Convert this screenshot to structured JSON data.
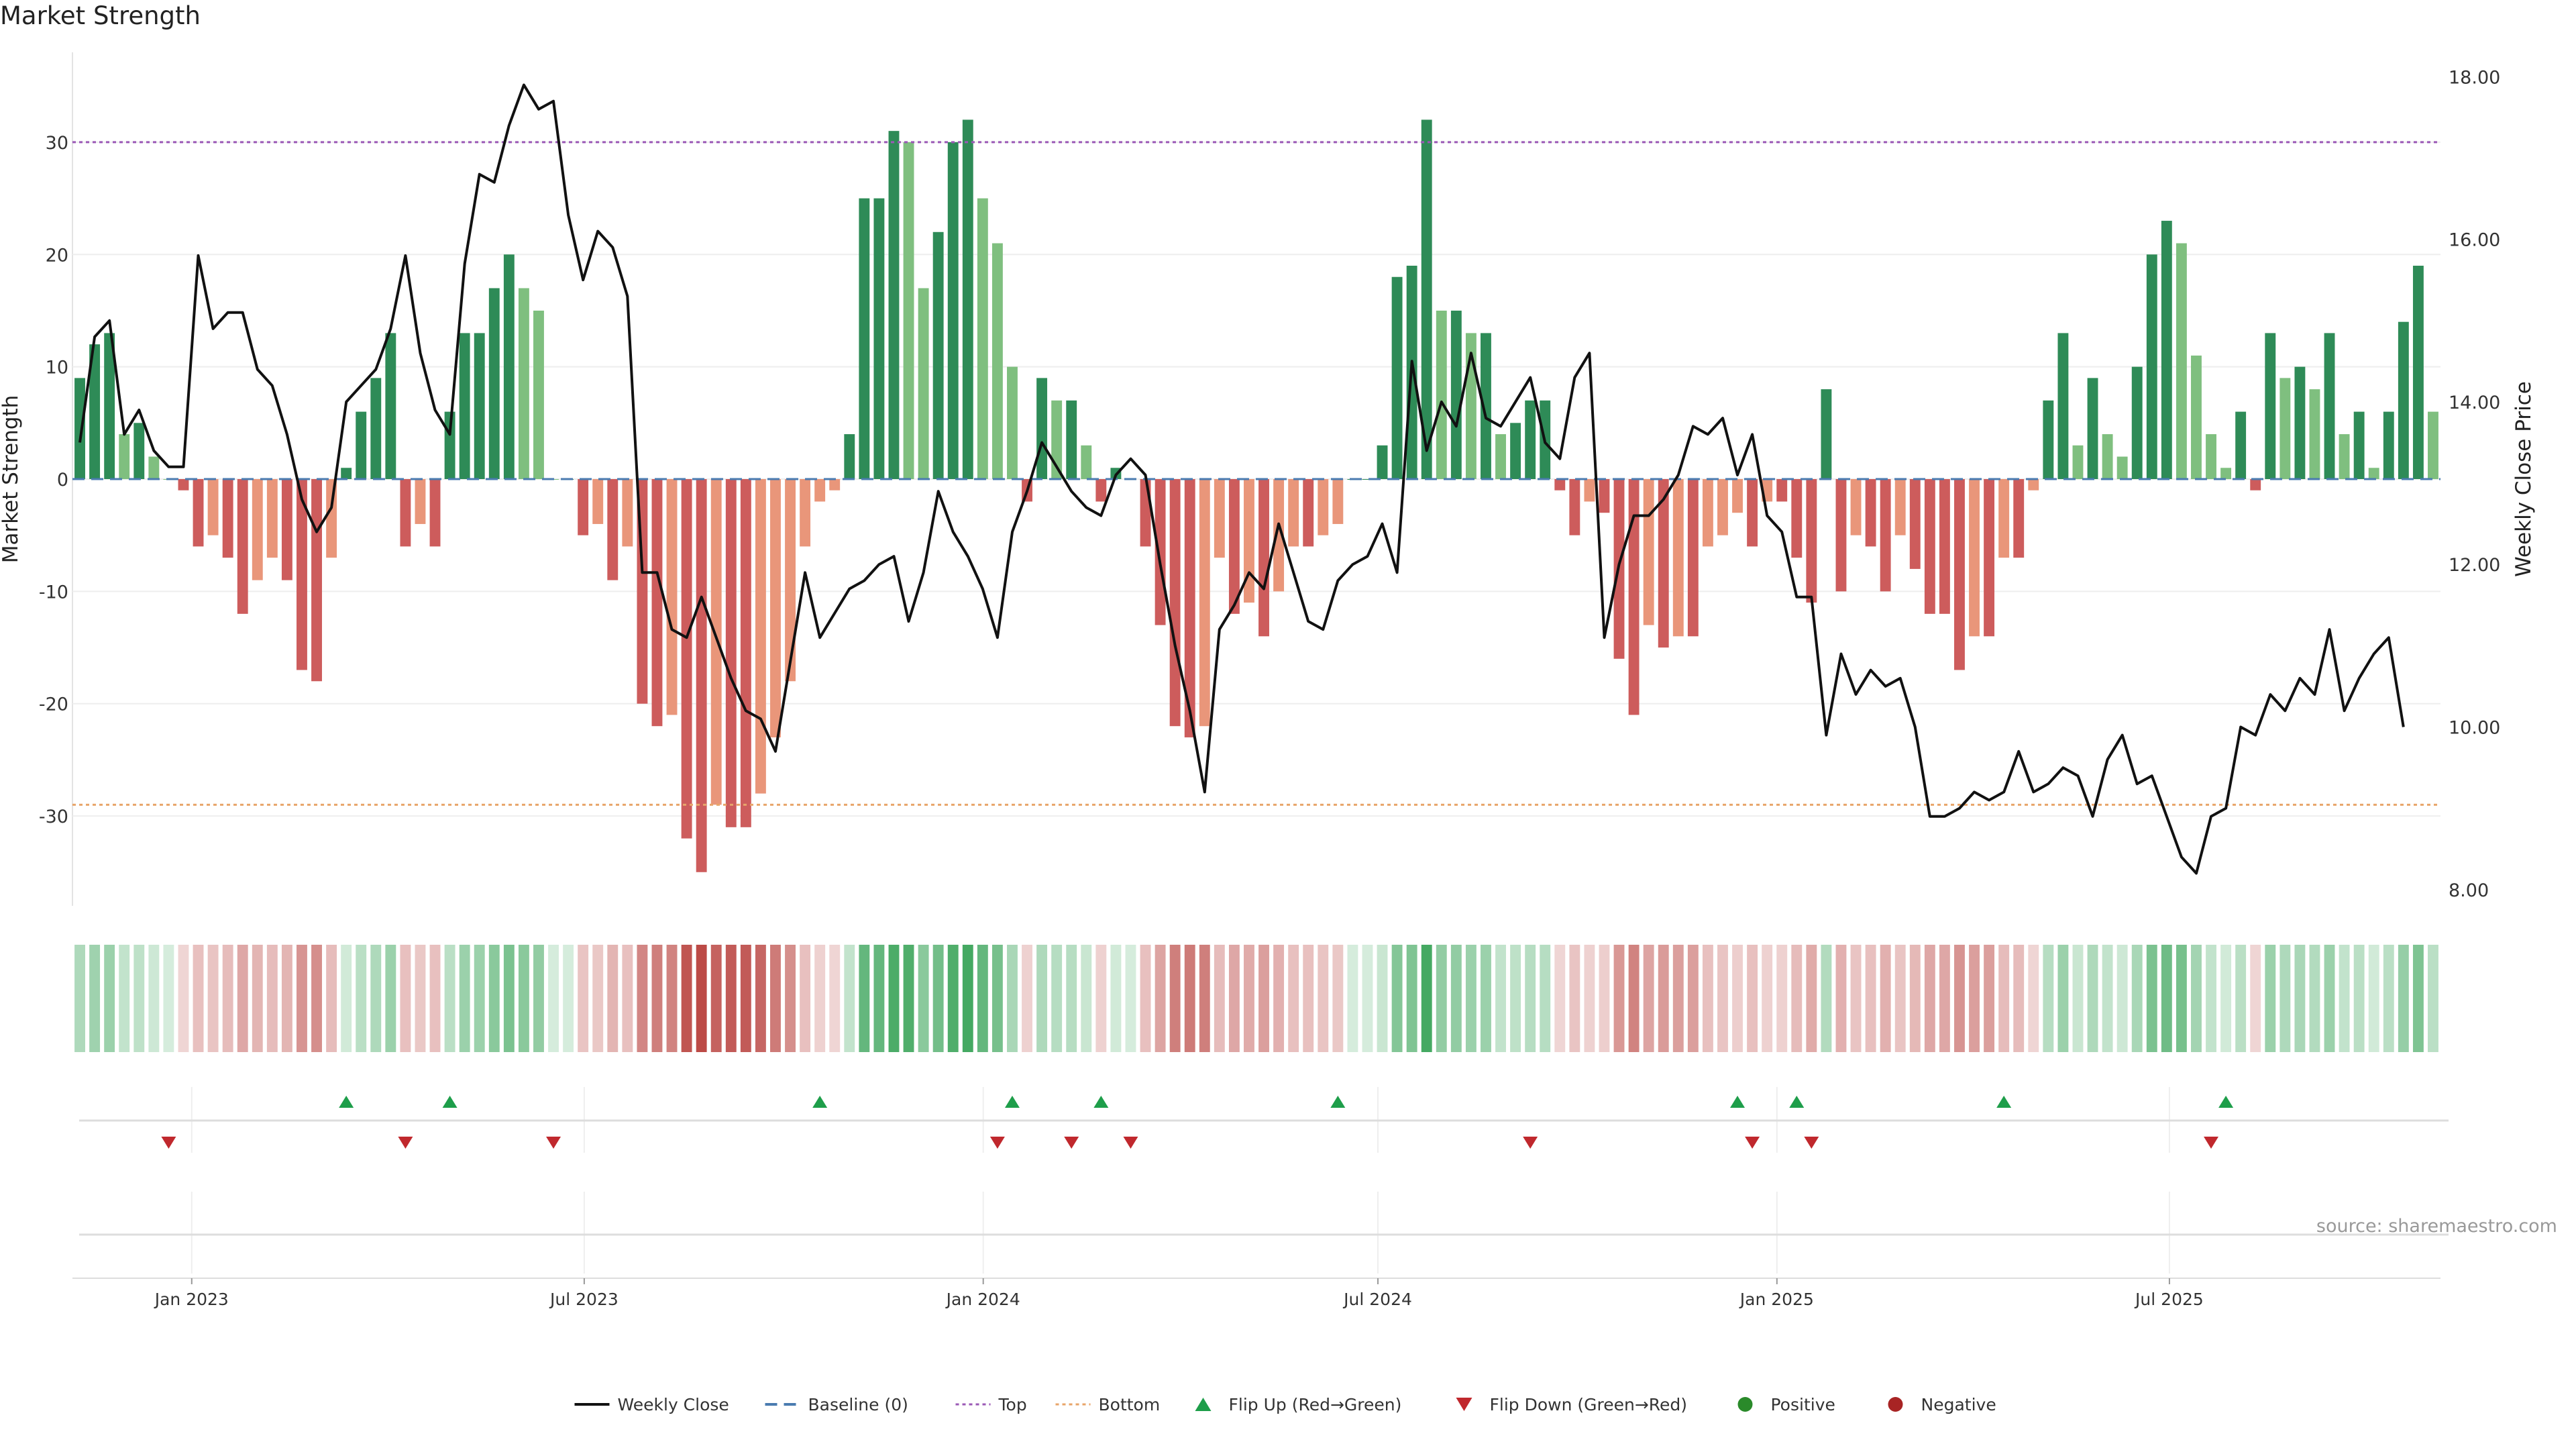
{
  "title": "Market Strength",
  "source": "source: sharemaestro.com",
  "chart_data": {
    "type": "bar",
    "ylabel_left": "Market Strength",
    "ylabel_right": "Weekly Close Price",
    "ylim_left": [
      -38,
      38
    ],
    "ylim_right": [
      7.8,
      18.3
    ],
    "yticks_left": [
      30,
      20,
      10,
      0,
      -10,
      -20,
      -30
    ],
    "yticks_right": [
      "18.00",
      "16.00",
      "14.00",
      "12.00",
      "10.00",
      "8.00"
    ],
    "ytick_values_right": [
      18,
      16,
      14,
      12,
      10,
      8
    ],
    "x_start": "2022-11-07",
    "x_end": "2025-11-03",
    "xticks": [
      {
        "date": "2023-01-01",
        "label": "Jan 2023"
      },
      {
        "date": "2023-07-01",
        "label": "Jul 2023"
      },
      {
        "date": "2024-01-01",
        "label": "Jan 2024"
      },
      {
        "date": "2024-07-01",
        "label": "Jul 2024"
      },
      {
        "date": "2025-01-01",
        "label": "Jan 2025"
      },
      {
        "date": "2025-07-01",
        "label": "Jul 2025"
      }
    ],
    "top_level": 30,
    "bottom_level": -29,
    "strength": [
      9,
      12,
      13,
      4,
      5,
      2,
      0,
      -1,
      -6,
      -5,
      -7,
      -12,
      -9,
      -7,
      -9,
      -17,
      -18,
      -7,
      1,
      6,
      9,
      13,
      -6,
      -4,
      -6,
      6,
      13,
      13,
      17,
      20,
      17,
      15,
      0,
      0,
      -5,
      -4,
      -9,
      -6,
      -20,
      -22,
      -21,
      -32,
      -35,
      -29,
      -31,
      -31,
      -28,
      -23,
      -18,
      -6,
      -2,
      -1,
      4,
      25,
      25,
      31,
      30,
      17,
      22,
      30,
      32,
      25,
      21,
      10,
      -2,
      9,
      7,
      7,
      3,
      -2,
      1,
      0,
      -6,
      -13,
      -22,
      -23,
      -22,
      -7,
      -12,
      -11,
      -14,
      -10,
      -6,
      -6,
      -5,
      -4,
      0,
      0,
      3,
      18,
      19,
      32,
      15,
      15,
      13,
      13,
      4,
      5,
      7,
      7,
      -1,
      -5,
      -2,
      -3,
      -16,
      -21,
      -13,
      -15,
      -14,
      -14,
      -6,
      -5,
      -3,
      -6,
      -2,
      -2,
      -7,
      -11,
      8,
      -10,
      -5,
      -6,
      -10,
      -5,
      -8,
      -12,
      -12,
      -17,
      -14,
      -14,
      -7,
      -7,
      -1,
      7,
      13,
      3,
      9,
      4,
      2,
      10,
      20,
      23,
      21,
      11,
      4,
      1,
      6,
      -1,
      13,
      9,
      10,
      8,
      13,
      4,
      6,
      1,
      6,
      14,
      19,
      6
    ],
    "weekly_close": [
      13.5,
      14.8,
      15.0,
      13.6,
      13.9,
      13.4,
      13.2,
      13.2,
      15.8,
      14.9,
      15.1,
      15.1,
      14.4,
      14.2,
      13.6,
      12.8,
      12.4,
      12.7,
      14.0,
      14.2,
      14.4,
      14.9,
      15.8,
      14.6,
      13.9,
      13.6,
      15.7,
      16.8,
      16.7,
      17.4,
      17.9,
      17.6,
      17.7,
      16.3,
      15.5,
      16.1,
      15.9,
      15.3,
      11.9,
      11.9,
      11.2,
      11.1,
      11.6,
      11.1,
      10.6,
      10.2,
      10.1,
      9.7,
      10.8,
      11.9,
      11.1,
      11.4,
      11.7,
      11.8,
      12.0,
      12.1,
      11.3,
      11.9,
      12.9,
      12.4,
      12.1,
      11.7,
      11.1,
      12.4,
      12.9,
      13.5,
      13.2,
      12.9,
      12.7,
      12.6,
      13.1,
      13.3,
      13.1,
      12.0,
      11.0,
      10.2,
      9.2,
      11.2,
      11.5,
      11.9,
      11.7,
      12.5,
      11.9,
      11.3,
      11.2,
      11.8,
      12.0,
      12.1,
      12.5,
      11.9,
      14.5,
      13.4,
      14.0,
      13.7,
      14.6,
      13.8,
      13.7,
      14.0,
      14.3,
      13.5,
      13.3,
      14.3,
      14.6,
      11.1,
      12.0,
      12.6,
      12.6,
      12.8,
      13.1,
      13.7,
      13.6,
      13.8,
      13.1,
      13.6,
      12.6,
      12.4,
      11.6,
      11.6,
      9.9,
      10.9,
      10.4,
      10.7,
      10.5,
      10.6,
      10.0,
      8.9,
      8.9,
      9.0,
      9.2,
      9.1,
      9.2,
      9.7,
      9.2,
      9.3,
      9.5,
      9.4,
      8.9,
      9.6,
      9.9,
      9.3,
      9.4,
      8.9,
      8.4,
      8.2,
      8.9,
      9.0,
      10.0,
      9.9,
      10.4,
      10.2,
      10.6,
      10.4,
      11.2,
      10.2,
      10.6,
      10.9,
      11.1,
      10.0
    ],
    "flip_up": [
      18,
      25,
      50,
      63,
      69,
      85,
      112,
      116,
      130,
      145
    ],
    "flip_down": [
      6,
      22,
      32,
      62,
      67,
      71,
      98,
      113,
      117,
      144
    ],
    "legend": [
      {
        "label": "Weekly Close",
        "symbol": "line",
        "color": "#111111"
      },
      {
        "label": "Baseline (0)",
        "symbol": "dash",
        "color": "#4a7bb0"
      },
      {
        "label": "Top",
        "symbol": "dot",
        "color": "#9b59b6"
      },
      {
        "label": "Bottom",
        "symbol": "dot",
        "color": "#e8a56a"
      },
      {
        "label": "Flip Up (Red→Green)",
        "symbol": "tri-up",
        "color": "#1e9e4a"
      },
      {
        "label": "Flip Down (Green→Red)",
        "symbol": "tri-down",
        "color": "#c0282d"
      },
      {
        "label": "Positive",
        "symbol": "circle",
        "color": "#2a8a2a"
      },
      {
        "label": "Negative",
        "symbol": "circle",
        "color": "#a82424"
      }
    ],
    "colors": {
      "pos_dark": "#2e8b57",
      "pos_light": "#7fbf7f",
      "neg_dark": "#cd5c5c",
      "neg_light": "#e9967a",
      "close_line": "#111111",
      "top_line": "#9b59b6",
      "bottom_line": "#e8a56a",
      "baseline": "#4a7bb0",
      "flip_up": "#1e9e4a",
      "flip_down": "#c0282d"
    }
  }
}
